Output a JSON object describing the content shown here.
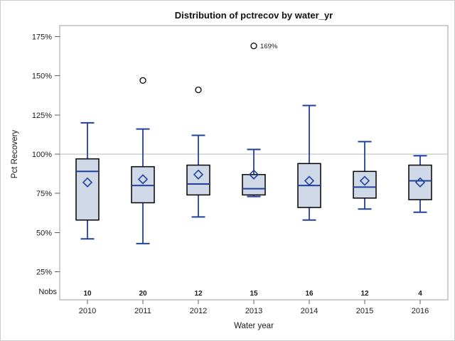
{
  "window": {
    "background": "#ffffff",
    "border_color": "#c9cdd1"
  },
  "chart_data": {
    "type": "boxplot",
    "title": "Distribution of pctrecov by water_yr",
    "xlabel": "Water year",
    "ylabel": "Pct Recovery",
    "nobs_row_label": "Nobs",
    "y_axis": {
      "tick_values": [
        175,
        150,
        125,
        100,
        75,
        50,
        25
      ],
      "tick_suffix": "%",
      "grid": false
    },
    "reference_line_value": 100,
    "legend_position": "none",
    "categories": [
      "2010",
      "2011",
      "2012",
      "2013",
      "2014",
      "2015",
      "2016"
    ],
    "nobs": [
      10,
      20,
      12,
      15,
      16,
      12,
      4
    ],
    "series": [
      {
        "category": "2010",
        "whisker_low": 46,
        "q1": 58,
        "median": 89,
        "q3": 97,
        "whisker_high": 120,
        "mean": 82,
        "outliers": [],
        "outlier_labels": []
      },
      {
        "category": "2011",
        "whisker_low": 43,
        "q1": 69,
        "median": 80,
        "q3": 92,
        "whisker_high": 116,
        "mean": 84,
        "outliers": [
          147
        ],
        "outlier_labels": [
          ""
        ]
      },
      {
        "category": "2012",
        "whisker_low": 60,
        "q1": 74,
        "median": 81,
        "q3": 93,
        "whisker_high": 112,
        "mean": 87,
        "outliers": [
          141
        ],
        "outlier_labels": [
          ""
        ]
      },
      {
        "category": "2013",
        "whisker_low": 73,
        "q1": 74,
        "median": 78,
        "q3": 87,
        "whisker_high": 103,
        "mean": 87,
        "outliers": [
          169
        ],
        "outlier_labels": [
          "169%"
        ]
      },
      {
        "category": "2014",
        "whisker_low": 58,
        "q1": 66,
        "median": 80,
        "q3": 94,
        "whisker_high": 131,
        "mean": 83,
        "outliers": [],
        "outlier_labels": []
      },
      {
        "category": "2015",
        "whisker_low": 65,
        "q1": 72,
        "median": 79,
        "q3": 89,
        "whisker_high": 108,
        "mean": 83,
        "outliers": [],
        "outlier_labels": []
      },
      {
        "category": "2016",
        "whisker_low": 63,
        "q1": 71,
        "median": 83,
        "q3": 93,
        "whisker_high": 99,
        "mean": 82,
        "outliers": [],
        "outlier_labels": []
      }
    ],
    "colors": {
      "box_fill": "#ced8e7",
      "box_stroke": "#000000",
      "line_blue": "#21409a",
      "reference_line": "#b4b8bc",
      "plot_border": "#9aa0a5",
      "outlier_stroke": "#000000",
      "text": "#1a1a1a"
    }
  }
}
